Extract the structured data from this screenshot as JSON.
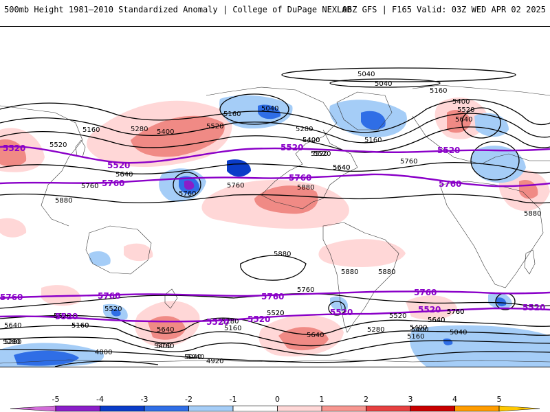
{
  "header": {
    "title": "500mb Height 1981–2010 Standardized Anomaly | College of DuPage NEXLAB",
    "run_info": "06Z GFS | F165 Valid: 03Z WED APR 02 2025"
  },
  "map": {
    "contour_color": "#000000",
    "reference_contour_color": "#8a00c8",
    "contour_labels": [
      "5040",
      "5040",
      "5160",
      "5400",
      "5520",
      "5640",
      "5160",
      "5280",
      "5400",
      "5520",
      "5160",
      "5280",
      "5400",
      "5520",
      "5640",
      "5760",
      "5880",
      "5400",
      "5520",
      "5640",
      "5760",
      "5880",
      "5040",
      "5160",
      "5520",
      "5640",
      "5760",
      "5880",
      "5880",
      "5880",
      "5760",
      "5520",
      "5640",
      "5760",
      "5640",
      "5520",
      "5280",
      "5160",
      "5040",
      "4920",
      "4800",
      "5160",
      "5280",
      "5400",
      "5640",
      "5520",
      "5760",
      "5880",
      "5040",
      "4920",
      "4800",
      "5760",
      "5640",
      "5520",
      "5400",
      "5280",
      "5160",
      "5040",
      "4920",
      "5280",
      "5160",
      "5040",
      "5400",
      "5520",
      "5640",
      "5760"
    ],
    "reference_labels": [
      "5520",
      "5520",
      "5520",
      "5520",
      "5760",
      "5760",
      "5760",
      "5760",
      "5760",
      "5760",
      "5760",
      "5520",
      "5520",
      "5520",
      "5520",
      "5520",
      "5520"
    ]
  },
  "colorbar": {
    "ticks": [
      "-5",
      "-4",
      "-3",
      "-2",
      "-1",
      "0",
      "1",
      "2",
      "3",
      "4",
      "5"
    ],
    "colors": [
      "#d26cd8",
      "#8a1ec8",
      "#0a3cc8",
      "#2f6ee6",
      "#a5cdf7",
      "#ffffff",
      "#ffd7d7",
      "#f79690",
      "#e64040",
      "#c80000",
      "#ff9c00",
      "#ffc800"
    ]
  }
}
